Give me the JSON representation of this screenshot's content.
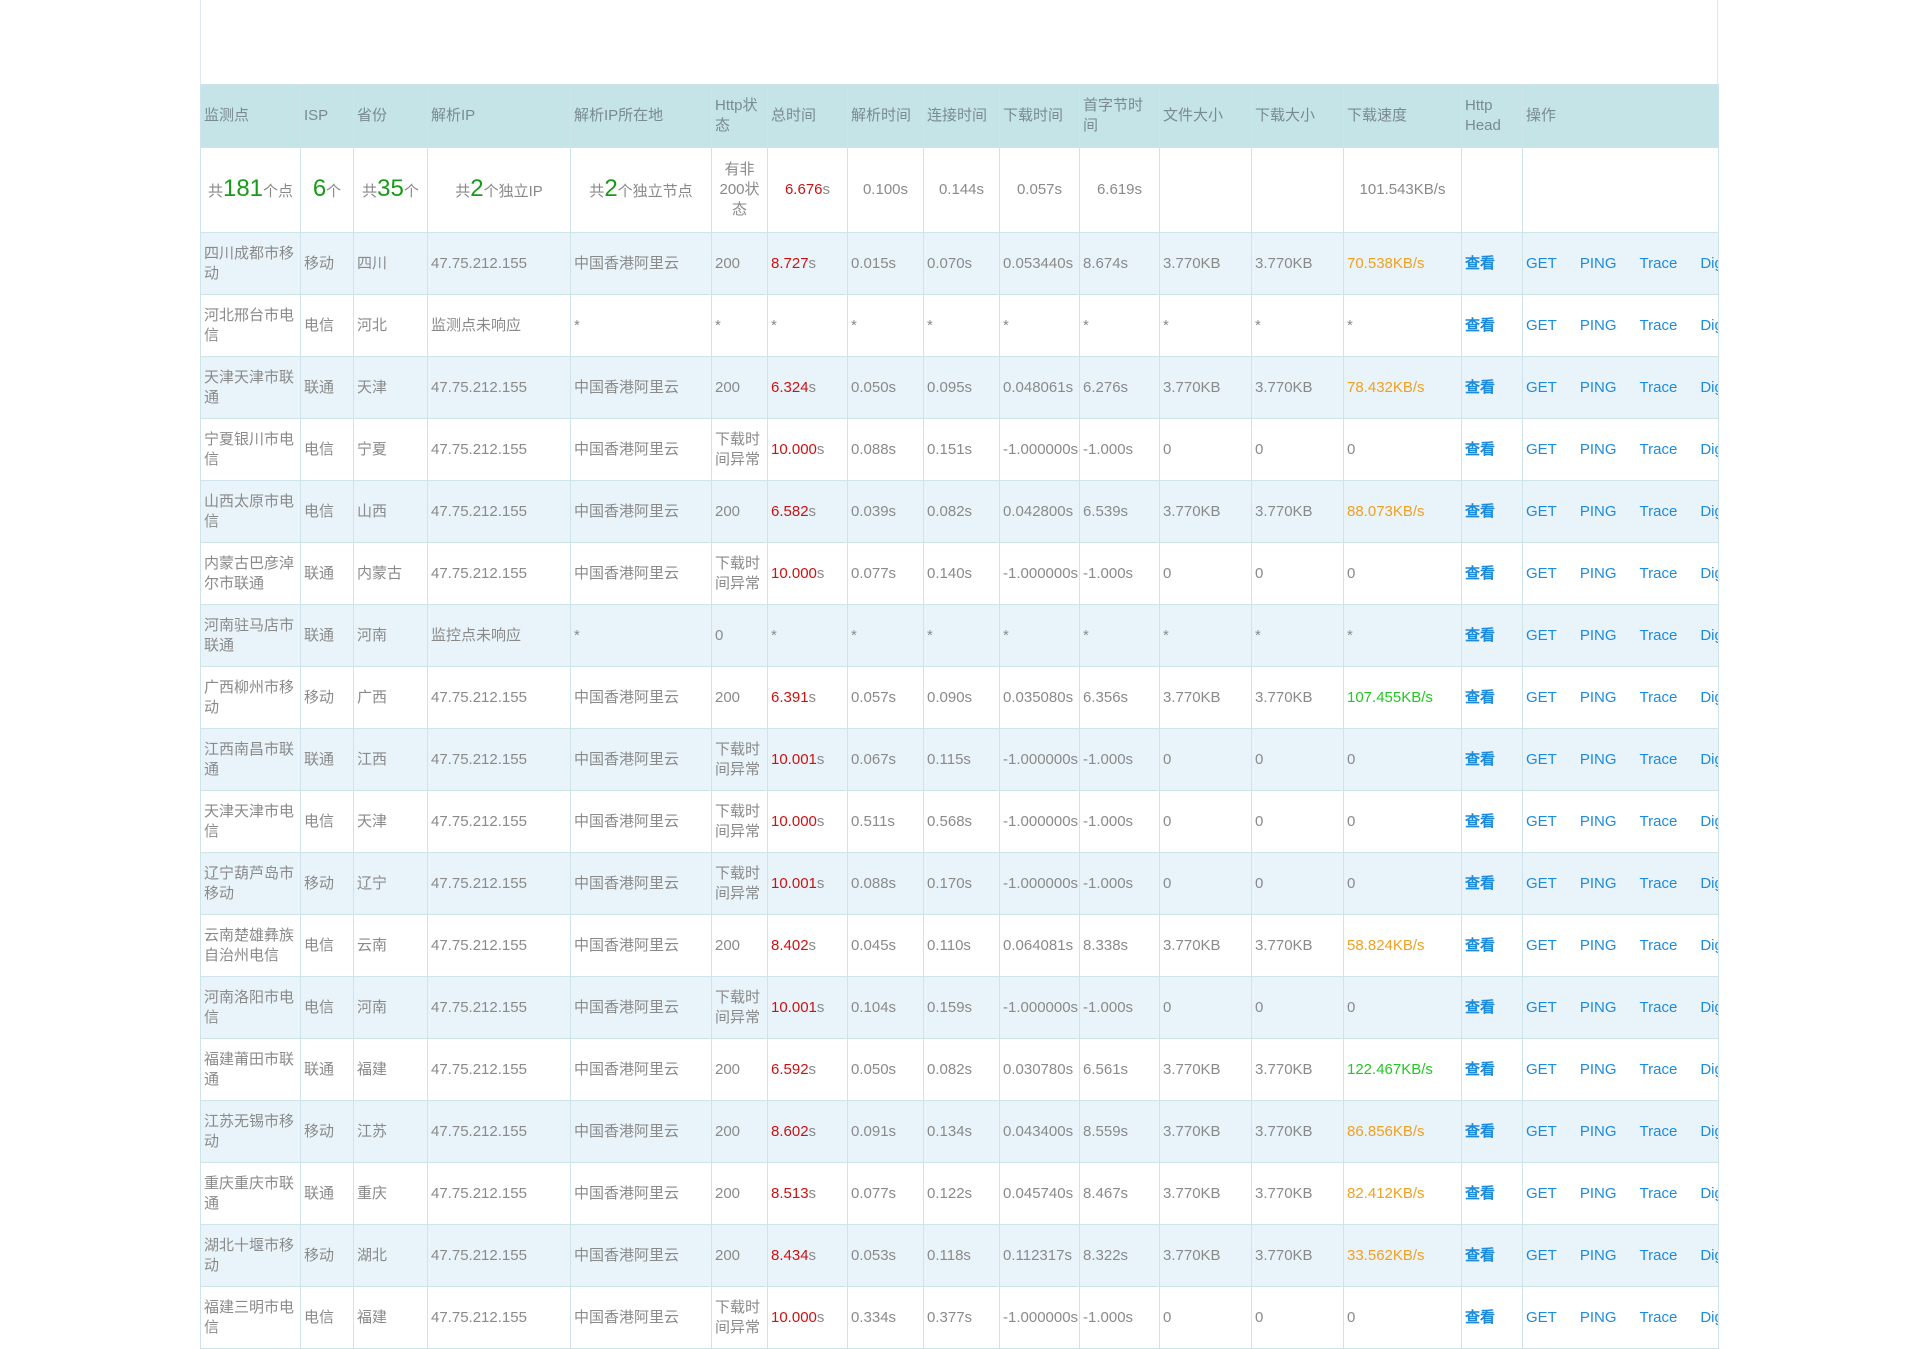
{
  "headers": [
    "监测点",
    "ISP",
    "省份",
    "解析IP",
    "解析IP所在地",
    "Http状态",
    "总时间",
    "解析时间",
    "连接时间",
    "下载时间",
    "首字节时间",
    "文件大小",
    "下载大小",
    "下载速度",
    "Http Head",
    "操作"
  ],
  "summary": {
    "points_prefix": "共",
    "points_count": "181",
    "points_suffix": "个点",
    "isp_count": "6",
    "isp_suffix": "个",
    "province_prefix": "共",
    "province_count": "35",
    "province_suffix": "个",
    "ip_prefix": "共",
    "ip_count": "2",
    "ip_suffix": "个独立IP",
    "node_prefix": "共",
    "node_count": "2",
    "node_suffix": "个独立节点",
    "status": "有非200状态",
    "total_time": "6.676",
    "unit_s": "s",
    "dns_time": "0.100s",
    "connect_time": "0.144s",
    "download_time": "0.057s",
    "first_byte": "6.619s",
    "speed": "101.543KB/s"
  },
  "op_labels": {
    "view": "查看",
    "get": "GET",
    "ping": "PING",
    "trace": "Trace",
    "dig": "Dig"
  },
  "rows": [
    {
      "point": "四川成都市移动",
      "isp": "移动",
      "prov": "四川",
      "ip": "47.75.212.155",
      "loc": "中国香港阿里云",
      "status": "200",
      "total": "8.727",
      "dns": "0.015s",
      "conn": "0.070s",
      "dl": "0.053440s",
      "fb": "8.674s",
      "fsize": "3.770KB",
      "dsize": "3.770KB",
      "speed": "70.538KB/s",
      "speed_color": "#f0a020",
      "hl": false
    },
    {
      "point": "河北邢台市电信",
      "isp": "电信",
      "prov": "河北",
      "ip": "监测点未响应",
      "loc": "*",
      "status": "*",
      "total": "*",
      "dns": "*",
      "conn": "*",
      "dl": "*",
      "fb": "*",
      "fsize": "*",
      "dsize": "*",
      "speed": "*",
      "speed_color": "#8a8a8a",
      "hl": false
    },
    {
      "point": "天津天津市联通",
      "isp": "联通",
      "prov": "天津",
      "ip": "47.75.212.155",
      "loc": "中国香港阿里云",
      "status": "200",
      "total": "6.324",
      "dns": "0.050s",
      "conn": "0.095s",
      "dl": "0.048061s",
      "fb": "6.276s",
      "fsize": "3.770KB",
      "dsize": "3.770KB",
      "speed": "78.432KB/s",
      "speed_color": "#f0a020",
      "hl": false
    },
    {
      "point": "宁夏银川市电信",
      "isp": "电信",
      "prov": "宁夏",
      "ip": "47.75.212.155",
      "loc": "中国香港阿里云",
      "status": "下载时间异常",
      "total": "10.000",
      "dns": "0.088s",
      "conn": "0.151s",
      "dl": "-1.000000s",
      "fb": "-1.000s",
      "fsize": "0",
      "dsize": "0",
      "speed": "0",
      "speed_color": "#8a8a8a",
      "hl": false
    },
    {
      "point": "山西太原市电信",
      "isp": "电信",
      "prov": "山西",
      "ip": "47.75.212.155",
      "loc": "中国香港阿里云",
      "status": "200",
      "total": "6.582",
      "dns": "0.039s",
      "conn": "0.082s",
      "dl": "0.042800s",
      "fb": "6.539s",
      "fsize": "3.770KB",
      "dsize": "3.770KB",
      "speed": "88.073KB/s",
      "speed_color": "#f0a020",
      "hl": true
    },
    {
      "point": "内蒙古巴彦淖尔市联通",
      "isp": "联通",
      "prov": "内蒙古",
      "ip": "47.75.212.155",
      "loc": "中国香港阿里云",
      "status": "下载时间异常",
      "total": "10.000",
      "dns": "0.077s",
      "conn": "0.140s",
      "dl": "-1.000000s",
      "fb": "-1.000s",
      "fsize": "0",
      "dsize": "0",
      "speed": "0",
      "speed_color": "#8a8a8a",
      "hl": false
    },
    {
      "point": "河南驻马店市联通",
      "isp": "联通",
      "prov": "河南",
      "ip": "监控点未响应",
      "loc": "*",
      "status": "0",
      "total": "*",
      "dns": "*",
      "conn": "*",
      "dl": "*",
      "fb": "*",
      "fsize": "*",
      "dsize": "*",
      "speed": "*",
      "speed_color": "#8a8a8a",
      "hl": false
    },
    {
      "point": "广西柳州市移动",
      "isp": "移动",
      "prov": "广西",
      "ip": "47.75.212.155",
      "loc": "中国香港阿里云",
      "status": "200",
      "total": "6.391",
      "dns": "0.057s",
      "conn": "0.090s",
      "dl": "0.035080s",
      "fb": "6.356s",
      "fsize": "3.770KB",
      "dsize": "3.770KB",
      "speed": "107.455KB/s",
      "speed_color": "#22c922",
      "hl": false
    },
    {
      "point": "江西南昌市联通",
      "isp": "联通",
      "prov": "江西",
      "ip": "47.75.212.155",
      "loc": "中国香港阿里云",
      "status": "下载时间异常",
      "total": "10.001",
      "dns": "0.067s",
      "conn": "0.115s",
      "dl": "-1.000000s",
      "fb": "-1.000s",
      "fsize": "0",
      "dsize": "0",
      "speed": "0",
      "speed_color": "#8a8a8a",
      "hl": false
    },
    {
      "point": "天津天津市电信",
      "isp": "电信",
      "prov": "天津",
      "ip": "47.75.212.155",
      "loc": "中国香港阿里云",
      "status": "下载时间异常",
      "total": "10.000",
      "dns": "0.511s",
      "conn": "0.568s",
      "dl": "-1.000000s",
      "fb": "-1.000s",
      "fsize": "0",
      "dsize": "0",
      "speed": "0",
      "speed_color": "#8a8a8a",
      "hl": false
    },
    {
      "point": "辽宁葫芦岛市移动",
      "isp": "移动",
      "prov": "辽宁",
      "ip": "47.75.212.155",
      "loc": "中国香港阿里云",
      "status": "下载时间异常",
      "total": "10.001",
      "dns": "0.088s",
      "conn": "0.170s",
      "dl": "-1.000000s",
      "fb": "-1.000s",
      "fsize": "0",
      "dsize": "0",
      "speed": "0",
      "speed_color": "#8a8a8a",
      "hl": false
    },
    {
      "point": "云南楚雄彝族自治州电信",
      "isp": "电信",
      "prov": "云南",
      "ip": "47.75.212.155",
      "loc": "中国香港阿里云",
      "status": "200",
      "total": "8.402",
      "dns": "0.045s",
      "conn": "0.110s",
      "dl": "0.064081s",
      "fb": "8.338s",
      "fsize": "3.770KB",
      "dsize": "3.770KB",
      "speed": "58.824KB/s",
      "speed_color": "#f0a020",
      "hl": false
    },
    {
      "point": "河南洛阳市电信",
      "isp": "电信",
      "prov": "河南",
      "ip": "47.75.212.155",
      "loc": "中国香港阿里云",
      "status": "下载时间异常",
      "total": "10.001",
      "dns": "0.104s",
      "conn": "0.159s",
      "dl": "-1.000000s",
      "fb": "-1.000s",
      "fsize": "0",
      "dsize": "0",
      "speed": "0",
      "speed_color": "#8a8a8a",
      "hl": false
    },
    {
      "point": "福建莆田市联通",
      "isp": "联通",
      "prov": "福建",
      "ip": "47.75.212.155",
      "loc": "中国香港阿里云",
      "status": "200",
      "total": "6.592",
      "dns": "0.050s",
      "conn": "0.082s",
      "dl": "0.030780s",
      "fb": "6.561s",
      "fsize": "3.770KB",
      "dsize": "3.770KB",
      "speed": "122.467KB/s",
      "speed_color": "#22c922",
      "hl": false
    },
    {
      "point": "江苏无锡市移动",
      "isp": "移动",
      "prov": "江苏",
      "ip": "47.75.212.155",
      "loc": "中国香港阿里云",
      "status": "200",
      "total": "8.602",
      "dns": "0.091s",
      "conn": "0.134s",
      "dl": "0.043400s",
      "fb": "8.559s",
      "fsize": "3.770KB",
      "dsize": "3.770KB",
      "speed": "86.856KB/s",
      "speed_color": "#f0a020",
      "hl": false
    },
    {
      "point": "重庆重庆市联通",
      "isp": "联通",
      "prov": "重庆",
      "ip": "47.75.212.155",
      "loc": "中国香港阿里云",
      "status": "200",
      "total": "8.513",
      "dns": "0.077s",
      "conn": "0.122s",
      "dl": "0.045740s",
      "fb": "8.467s",
      "fsize": "3.770KB",
      "dsize": "3.770KB",
      "speed": "82.412KB/s",
      "speed_color": "#f0a020",
      "hl": false
    },
    {
      "point": "湖北十堰市移动",
      "isp": "移动",
      "prov": "湖北",
      "ip": "47.75.212.155",
      "loc": "中国香港阿里云",
      "status": "200",
      "total": "8.434",
      "dns": "0.053s",
      "conn": "0.118s",
      "dl": "0.112317s",
      "fb": "8.322s",
      "fsize": "3.770KB",
      "dsize": "3.770KB",
      "speed": "33.562KB/s",
      "speed_color": "#f0a020",
      "hl": false
    },
    {
      "point": "福建三明市电信",
      "isp": "电信",
      "prov": "福建",
      "ip": "47.75.212.155",
      "loc": "中国香港阿里云",
      "status": "下载时间异常",
      "total": "10.000",
      "dns": "0.334s",
      "conn": "0.377s",
      "dl": "-1.000000s",
      "fb": "-1.000s",
      "fsize": "0",
      "dsize": "0",
      "speed": "0",
      "speed_color": "#8a8a8a",
      "hl": false
    }
  ]
}
